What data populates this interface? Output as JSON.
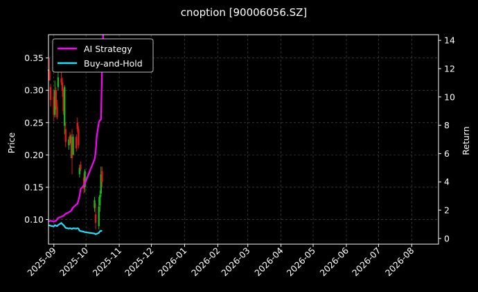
{
  "chart_data": {
    "type": "line",
    "title": "cnoption [90006056.SZ]",
    "xlabel": "",
    "ylabel": "Price",
    "ylabel_right": "Return",
    "x_axis": {
      "type": "date",
      "range": [
        "2025-08-27",
        "2026-08-26"
      ],
      "ticks": [
        "2025-09",
        "2025-10",
        "2025-11",
        "2025-12",
        "2026-01",
        "2026-02",
        "2026-03",
        "2026-04",
        "2026-05",
        "2026-06",
        "2026-07",
        "2026-08"
      ]
    },
    "y_left": {
      "range": [
        0.062,
        0.386
      ],
      "ticks": [
        0.1,
        0.15,
        0.2,
        0.25,
        0.3,
        0.35
      ],
      "tick_labels": [
        "0.10",
        "0.15",
        "0.20",
        "0.25",
        "0.30",
        "0.35"
      ]
    },
    "y_right": {
      "range": [
        -0.4,
        14.4
      ],
      "ticks": [
        0,
        2,
        4,
        6,
        8,
        10,
        12,
        14
      ],
      "tick_labels": [
        "0",
        "2",
        "4",
        "6",
        "8",
        "10",
        "12",
        "14"
      ]
    },
    "grid": true,
    "legend": {
      "position": "top-left",
      "entries": [
        "AI Strategy",
        "Buy-and-Hold"
      ]
    },
    "colors": {
      "background": "#000000",
      "up": "#1db31d",
      "down": "#e01818",
      "ai": "#ff00ff",
      "bh": "#22e0ff",
      "grid": "#555555",
      "text": "#ffffff"
    },
    "candles": [
      {
        "x": "2025-08-27",
        "o": 0.33,
        "h": 0.345,
        "l": 0.32,
        "c": 0.332
      },
      {
        "x": "2025-08-28",
        "o": 0.33,
        "h": 0.35,
        "l": 0.318,
        "c": 0.315
      },
      {
        "x": "2025-08-29",
        "o": 0.305,
        "h": 0.31,
        "l": 0.275,
        "c": 0.285
      },
      {
        "x": "2025-09-01",
        "o": 0.29,
        "h": 0.3,
        "l": 0.252,
        "c": 0.262
      },
      {
        "x": "2025-09-02",
        "o": 0.262,
        "h": 0.315,
        "l": 0.258,
        "c": 0.3
      },
      {
        "x": "2025-09-03",
        "o": 0.3,
        "h": 0.305,
        "l": 0.27,
        "c": 0.275
      },
      {
        "x": "2025-09-04",
        "o": 0.275,
        "h": 0.285,
        "l": 0.255,
        "c": 0.258
      },
      {
        "x": "2025-09-05",
        "o": 0.305,
        "h": 0.33,
        "l": 0.3,
        "c": 0.32
      },
      {
        "x": "2025-09-08",
        "o": 0.318,
        "h": 0.328,
        "l": 0.308,
        "c": 0.312
      },
      {
        "x": "2025-09-09",
        "o": 0.312,
        "h": 0.32,
        "l": 0.29,
        "c": 0.3
      },
      {
        "x": "2025-09-10",
        "o": 0.3,
        "h": 0.302,
        "l": 0.262,
        "c": 0.268
      },
      {
        "x": "2025-09-11",
        "o": 0.245,
        "h": 0.308,
        "l": 0.232,
        "c": 0.305
      },
      {
        "x": "2025-09-12",
        "o": 0.24,
        "h": 0.25,
        "l": 0.212,
        "c": 0.22
      },
      {
        "x": "2025-09-15",
        "o": 0.215,
        "h": 0.228,
        "l": 0.208,
        "c": 0.224
      },
      {
        "x": "2025-09-16",
        "o": 0.23,
        "h": 0.235,
        "l": 0.215,
        "c": 0.218
      },
      {
        "x": "2025-09-17",
        "o": 0.218,
        "h": 0.232,
        "l": 0.195,
        "c": 0.228
      },
      {
        "x": "2025-09-18",
        "o": 0.228,
        "h": 0.24,
        "l": 0.17,
        "c": 0.195
      },
      {
        "x": "2025-09-19",
        "o": 0.2,
        "h": 0.232,
        "l": 0.2,
        "c": 0.228
      },
      {
        "x": "2025-09-22",
        "o": 0.228,
        "h": 0.232,
        "l": 0.205,
        "c": 0.21
      },
      {
        "x": "2025-09-23",
        "o": 0.25,
        "h": 0.258,
        "l": 0.235,
        "c": 0.24
      },
      {
        "x": "2025-09-24",
        "o": 0.24,
        "h": 0.245,
        "l": 0.21,
        "c": 0.215
      },
      {
        "x": "2025-09-25",
        "o": 0.17,
        "h": 0.185,
        "l": 0.165,
        "c": 0.18
      },
      {
        "x": "2025-09-26",
        "o": 0.185,
        "h": 0.19,
        "l": 0.175,
        "c": 0.178
      },
      {
        "x": "2025-09-29",
        "o": 0.165,
        "h": 0.172,
        "l": 0.14,
        "c": 0.148
      },
      {
        "x": "2025-09-30",
        "o": 0.15,
        "h": 0.178,
        "l": 0.142,
        "c": 0.175
      },
      {
        "x": "2025-10-09",
        "o": 0.118,
        "h": 0.135,
        "l": 0.112,
        "c": 0.13
      },
      {
        "x": "2025-10-10",
        "o": 0.108,
        "h": 0.125,
        "l": 0.085,
        "c": 0.095
      },
      {
        "x": "2025-10-13",
        "o": 0.09,
        "h": 0.135,
        "l": 0.085,
        "c": 0.12
      },
      {
        "x": "2025-10-14",
        "o": 0.122,
        "h": 0.145,
        "l": 0.112,
        "c": 0.138
      },
      {
        "x": "2025-10-15",
        "o": 0.14,
        "h": 0.182,
        "l": 0.135,
        "c": 0.17
      },
      {
        "x": "2025-10-16",
        "o": 0.175,
        "h": 0.182,
        "l": 0.15,
        "c": 0.158
      }
    ],
    "series": [
      {
        "name": "AI Strategy",
        "axis": "right",
        "x": [
          "2025-08-27",
          "2025-08-29",
          "2025-09-01",
          "2025-09-03",
          "2025-09-05",
          "2025-09-08",
          "2025-09-10",
          "2025-09-12",
          "2025-09-15",
          "2025-09-17",
          "2025-09-19",
          "2025-09-22",
          "2025-09-23",
          "2025-09-24",
          "2025-09-25",
          "2025-09-26",
          "2025-09-29",
          "2025-09-30",
          "2025-10-09",
          "2025-10-10",
          "2025-10-11",
          "2025-10-13",
          "2025-10-14",
          "2025-10-15",
          "2025-10-16",
          "2025-10-17"
        ],
        "values": [
          1.2,
          1.25,
          1.2,
          1.25,
          1.45,
          1.55,
          1.6,
          1.75,
          1.85,
          1.95,
          2.2,
          2.4,
          2.45,
          2.7,
          3.0,
          3.5,
          3.75,
          3.9,
          5.6,
          6.1,
          7.2,
          8.2,
          8.35,
          8.4,
          12.0,
          14.4
        ]
      },
      {
        "name": "Buy-and-Hold",
        "axis": "right",
        "x": [
          "2025-08-27",
          "2025-08-28",
          "2025-08-29",
          "2025-09-01",
          "2025-09-02",
          "2025-09-03",
          "2025-09-04",
          "2025-09-05",
          "2025-09-08",
          "2025-09-09",
          "2025-09-10",
          "2025-09-11",
          "2025-09-12",
          "2025-09-15",
          "2025-09-16",
          "2025-09-17",
          "2025-09-18",
          "2025-09-19",
          "2025-09-22",
          "2025-09-23",
          "2025-09-24",
          "2025-09-25",
          "2025-09-26",
          "2025-09-29",
          "2025-09-30",
          "2025-10-09",
          "2025-10-10",
          "2025-10-13",
          "2025-10-14",
          "2025-10-15",
          "2025-10-16"
        ],
        "values": [
          0.95,
          0.92,
          0.9,
          0.85,
          0.95,
          0.9,
          0.88,
          0.95,
          1.1,
          1.0,
          0.95,
          0.85,
          0.75,
          0.7,
          0.72,
          0.7,
          0.68,
          0.72,
          0.7,
          0.72,
          0.7,
          0.55,
          0.52,
          0.48,
          0.45,
          0.35,
          0.3,
          0.4,
          0.5,
          0.55,
          0.52
        ]
      }
    ]
  }
}
